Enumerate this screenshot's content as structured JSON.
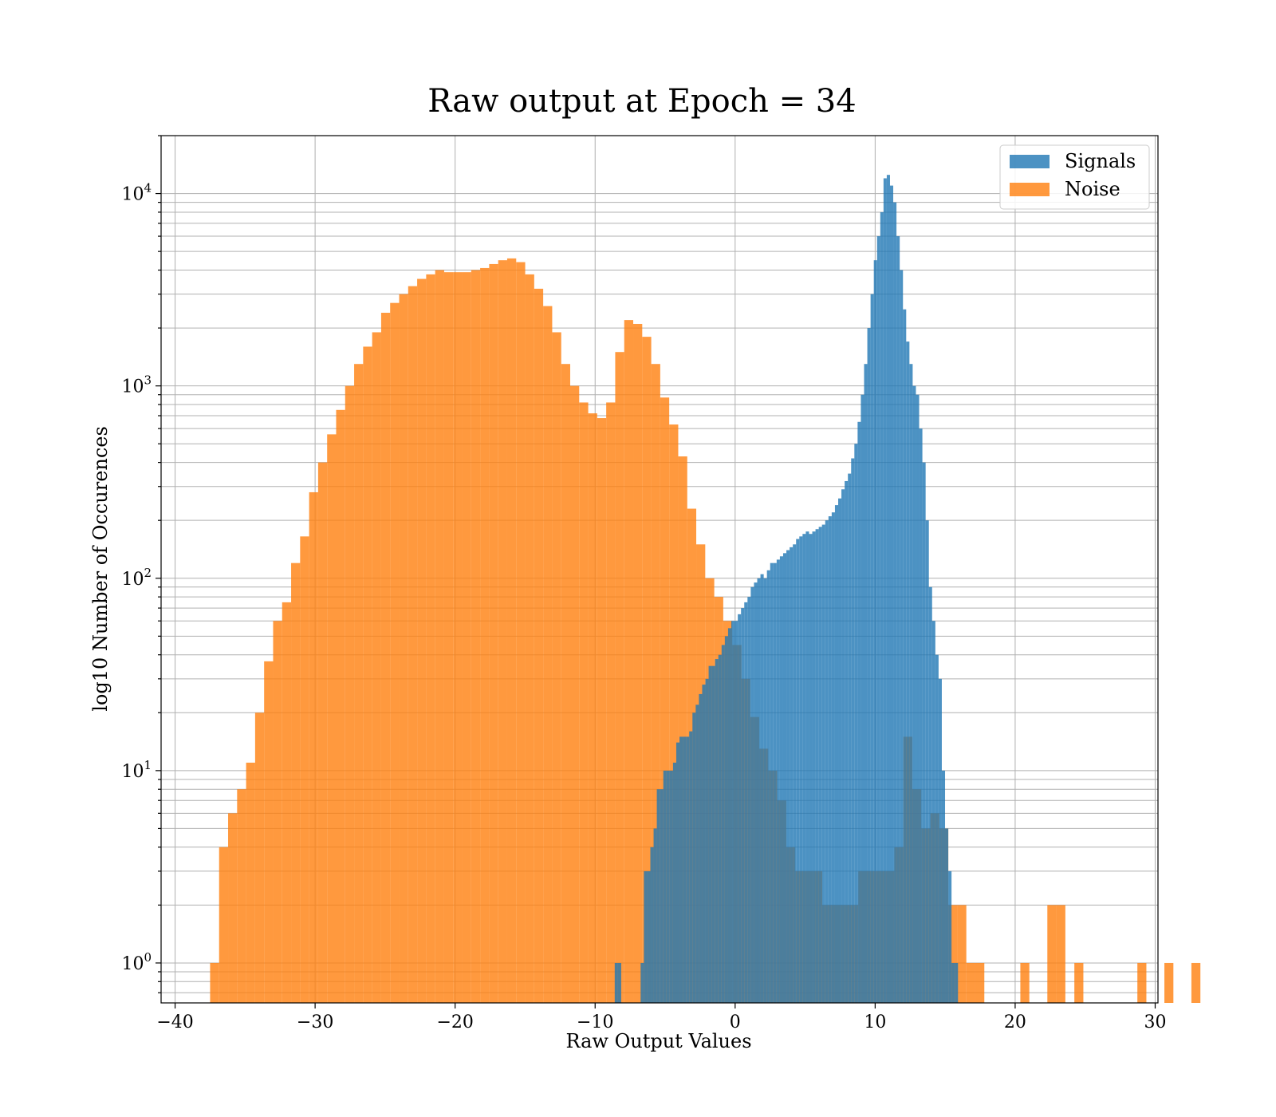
{
  "chart_data": {
    "type": "bar",
    "title": "Raw output at Epoch = 34",
    "xlabel": "Raw Output Values",
    "ylabel": "log10 Number of Occurences",
    "xlim": [
      -41,
      30.2
    ],
    "ylim": [
      0.62,
      20000
    ],
    "yscale": "log",
    "grid": true,
    "legend_position": "top-right",
    "x_ticks": [
      -40,
      -30,
      -20,
      -10,
      0,
      10,
      20,
      30
    ],
    "y_ticks": [
      {
        "value": 1,
        "base": "10",
        "exp": "0"
      },
      {
        "value": 10,
        "base": "10",
        "exp": "1"
      },
      {
        "value": 100,
        "base": "10",
        "exp": "2"
      },
      {
        "value": 1000,
        "base": "10",
        "exp": "3"
      },
      {
        "value": 10000,
        "base": "10",
        "exp": "4"
      }
    ],
    "series": [
      {
        "name": "Signals",
        "color": "#1f77b4",
        "opacity": 0.8,
        "bin_start": -8.6,
        "bin_width": 0.2313,
        "values": [
          1,
          1,
          0,
          0,
          0,
          0,
          0,
          0,
          1,
          3,
          3,
          4,
          5,
          8,
          8,
          10,
          10,
          10,
          11,
          14,
          15,
          15,
          15,
          16,
          20,
          22,
          25,
          28,
          30,
          35,
          35,
          38,
          40,
          45,
          50,
          55,
          60,
          60,
          65,
          70,
          75,
          80,
          90,
          95,
          100,
          105,
          100,
          110,
          120,
          120,
          125,
          130,
          135,
          140,
          145,
          150,
          160,
          165,
          170,
          175,
          170,
          175,
          180,
          185,
          190,
          200,
          210,
          220,
          240,
          260,
          290,
          320,
          350,
          420,
          500,
          650,
          900,
          1300,
          2000,
          3000,
          4500,
          6000,
          8000,
          12000,
          12500,
          11000,
          9000,
          6000,
          4000,
          2500,
          1700,
          1300,
          1000,
          900,
          600,
          400,
          200,
          90,
          60,
          40,
          30,
          10,
          5,
          3,
          1,
          1
        ]
      },
      {
        "name": "Noise",
        "color": "#ff7f0e",
        "opacity": 0.8,
        "bin_start": -37.5,
        "bin_width": 0.643,
        "values": [
          1,
          4,
          6,
          8,
          11,
          20,
          37,
          60,
          75,
          120,
          165,
          280,
          400,
          560,
          750,
          1000,
          1300,
          1600,
          1900,
          2400,
          2700,
          3000,
          3300,
          3600,
          3800,
          4000,
          3900,
          3900,
          3900,
          4000,
          4100,
          4300,
          4500,
          4600,
          4400,
          3800,
          3200,
          2600,
          1900,
          1300,
          1000,
          820,
          720,
          680,
          820,
          1500,
          2200,
          2100,
          1800,
          1300,
          870,
          630,
          430,
          230,
          150,
          100,
          80,
          60,
          45,
          30,
          19,
          13,
          10,
          7,
          4,
          3,
          3,
          3,
          2,
          2,
          2,
          2,
          3,
          3,
          3,
          3,
          4,
          15,
          8,
          5,
          6,
          5,
          2,
          2,
          1,
          1,
          0,
          0,
          0,
          0,
          1,
          0,
          0,
          2,
          2,
          0,
          1,
          0,
          0,
          0,
          0,
          0,
          0,
          1,
          0,
          0,
          1,
          0,
          0,
          1
        ]
      }
    ]
  }
}
